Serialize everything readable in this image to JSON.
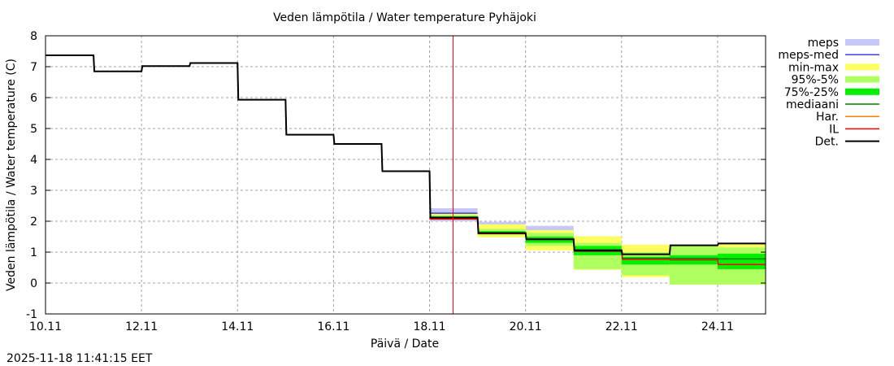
{
  "chart_data": {
    "type": "line",
    "title": "Veden lämpötila / Water temperature Pyhäjoki",
    "xlabel": "Päivä / Date",
    "ylabel": "Veden lämpötila / Water temperature (C)",
    "ylim": [
      -1,
      8
    ],
    "yticks": [
      "-1",
      "0",
      "1",
      "2",
      "3",
      "4",
      "5",
      "6",
      "7",
      "8"
    ],
    "xlim_days": [
      10,
      25
    ],
    "xticks": [
      "10.11",
      "12.11",
      "14.11",
      "16.11",
      "18.11",
      "20.11",
      "22.11",
      "24.11"
    ],
    "grid": true,
    "legend_position": "outside-right",
    "now_marker_day": 18.49,
    "timestamp": "2025-11-18 11:41:15 EET",
    "days": [
      10,
      11,
      12,
      13,
      14,
      15,
      16,
      17,
      18,
      19,
      20,
      21,
      22,
      23,
      24
    ],
    "legend": [
      {
        "name": "meps",
        "color": "#c8c8f8",
        "style": "band"
      },
      {
        "name": "meps-med",
        "color": "#4040e0",
        "style": "line"
      },
      {
        "name": "min-max",
        "color": "#ffff60",
        "style": "band"
      },
      {
        "name": "95%-5%",
        "color": "#b0ff60",
        "style": "band"
      },
      {
        "name": "75%-25%",
        "color": "#00f000",
        "style": "band"
      },
      {
        "name": "mediaani",
        "color": "#008000",
        "style": "line"
      },
      {
        "name": "Har.",
        "color": "#ff8000",
        "style": "line"
      },
      {
        "name": "IL",
        "color": "#ff0000",
        "style": "line"
      },
      {
        "name": "Det.",
        "color": "#000000",
        "style": "line"
      }
    ],
    "forecast_days": [
      18,
      19,
      20,
      21,
      22,
      23,
      24
    ],
    "bands": {
      "meps": [
        [
          2.0,
          2.42
        ],
        [
          1.6,
          1.98
        ],
        [
          1.4,
          1.85
        ],
        null,
        null,
        null,
        null
      ],
      "min-max": [
        [
          2.05,
          2.24
        ],
        [
          1.48,
          1.9
        ],
        [
          1.06,
          1.71
        ],
        [
          0.43,
          1.51
        ],
        [
          0.19,
          1.24
        ],
        [
          -0.05,
          1.25
        ],
        [
          -0.05,
          1.29
        ]
      ],
      "95%-5%": [
        [
          2.06,
          2.2
        ],
        [
          1.55,
          1.75
        ],
        [
          1.2,
          1.62
        ],
        [
          0.45,
          1.3
        ],
        [
          0.25,
          1.0
        ],
        [
          -0.05,
          1.2
        ],
        [
          -0.05,
          1.15
        ]
      ],
      "75%-25%": [
        [
          2.08,
          2.16
        ],
        [
          1.58,
          1.68
        ],
        [
          1.3,
          1.5
        ],
        [
          0.9,
          1.2
        ],
        [
          0.6,
          0.85
        ],
        [
          0.6,
          0.9
        ],
        [
          0.45,
          0.95
        ]
      ]
    },
    "series": [
      {
        "name": "meps-med",
        "start_day": 18,
        "values": [
          2.26
        ]
      },
      {
        "name": "mediaani",
        "start_day": 10,
        "values": [
          7.37,
          6.85,
          7.02,
          7.12,
          5.93,
          4.8,
          4.5,
          3.62,
          2.1,
          1.6,
          1.4,
          1.08,
          0.8,
          0.8,
          0.78
        ]
      },
      {
        "name": "IL",
        "start_day": 18,
        "values": [
          2.07,
          1.6,
          1.42,
          1.03,
          0.77,
          0.75,
          0.6
        ]
      },
      {
        "name": "Det.",
        "start_day": 10,
        "values": [
          7.37,
          6.85,
          7.02,
          7.12,
          5.93,
          4.8,
          4.5,
          3.62,
          2.12,
          1.62,
          1.42,
          1.05,
          0.93,
          1.22,
          1.28
        ]
      }
    ]
  }
}
